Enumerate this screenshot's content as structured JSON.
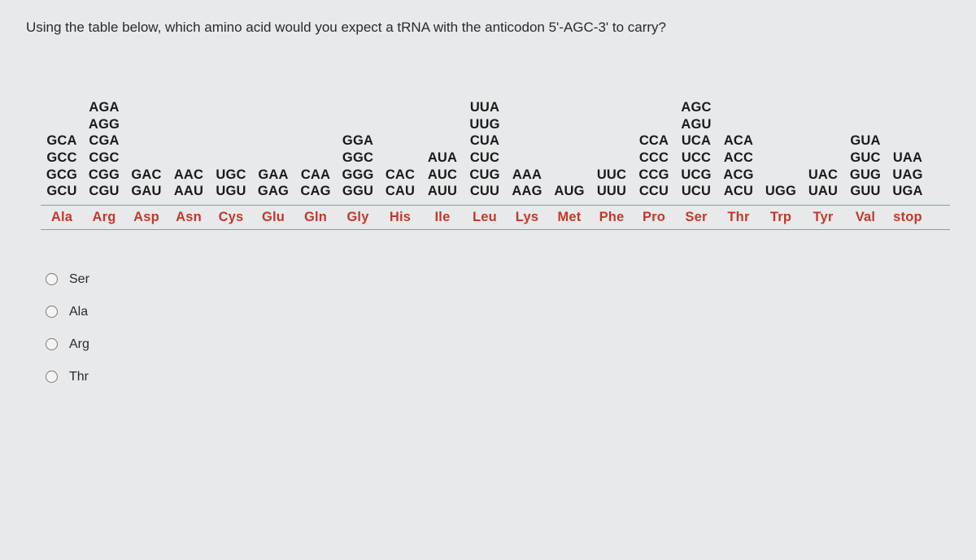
{
  "question": "Using the table below, which amino acid would you expect a tRNA with the anticodon 5'-AGC-3' to carry?",
  "codon_table": {
    "columns": [
      "Ala",
      "Arg",
      "Asp",
      "Asn",
      "Cys",
      "Glu",
      "Gln",
      "Gly",
      "His",
      "Ile",
      "Leu",
      "Lys",
      "Met",
      "Phe",
      "Pro",
      "Ser",
      "Thr",
      "Trp",
      "Tyr",
      "Val",
      "stop"
    ],
    "codons": [
      [
        "",
        "AGA",
        "",
        "",
        "",
        "",
        "",
        "",
        "",
        "",
        "UUA",
        "",
        "",
        "",
        "",
        "AGC",
        "",
        "",
        "",
        "",
        ""
      ],
      [
        "",
        "AGG",
        "",
        "",
        "",
        "",
        "",
        "",
        "",
        "",
        "UUG",
        "",
        "",
        "",
        "",
        "AGU",
        "",
        "",
        "",
        "",
        ""
      ],
      [
        "GCA",
        "CGA",
        "",
        "",
        "",
        "",
        "",
        "GGA",
        "",
        "",
        "CUA",
        "",
        "",
        "",
        "CCA",
        "UCA",
        "ACA",
        "",
        "",
        "GUA",
        ""
      ],
      [
        "GCC",
        "CGC",
        "",
        "",
        "",
        "",
        "",
        "GGC",
        "",
        "AUA",
        "CUC",
        "",
        "",
        "",
        "CCC",
        "UCC",
        "ACC",
        "",
        "",
        "GUC",
        "UAA"
      ],
      [
        "GCG",
        "CGG",
        "GAC",
        "AAC",
        "UGC",
        "GAA",
        "CAA",
        "GGG",
        "CAC",
        "AUC",
        "CUG",
        "AAA",
        "",
        "UUC",
        "CCG",
        "UCG",
        "ACG",
        "",
        "UAC",
        "GUG",
        "UAG"
      ],
      [
        "GCU",
        "CGU",
        "GAU",
        "AAU",
        "UGU",
        "GAG",
        "CAG",
        "GGU",
        "CAU",
        "AUU",
        "CUU",
        "AAG",
        "AUG",
        "UUU",
        "CCU",
        "UCU",
        "ACU",
        "UGG",
        "UAU",
        "GUU",
        "UGA"
      ]
    ]
  },
  "options": [
    "Ser",
    "Ala",
    "Arg",
    "Thr"
  ],
  "colors": {
    "body_bg": "#e8e9ea",
    "text": "#2a2a2a",
    "codon_text": "#1a1a1a",
    "aa_text": "#c0392b",
    "border": "#6aa8c8",
    "radio_border": "#7a7a7a"
  }
}
